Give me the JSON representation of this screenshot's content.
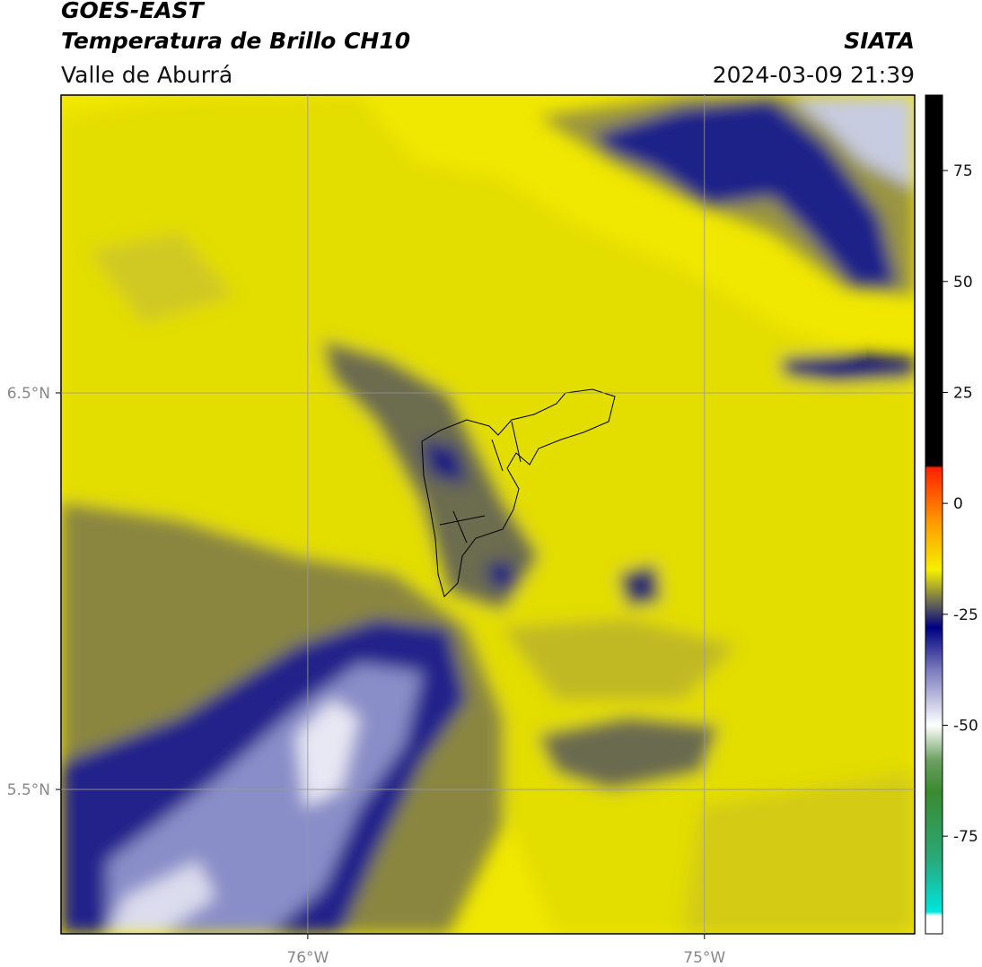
{
  "header": {
    "title": "GOES-EAST",
    "subtitle": "Temperatura de Brillo CH10",
    "region": "Valle de Aburrá",
    "source": "SIATA",
    "timestamp": "2024-03-09 21:39"
  },
  "map": {
    "xlim": [
      -76.622,
      -74.47
    ],
    "ylim": [
      5.136,
      7.251
    ],
    "xticks": [
      {
        "value": -76,
        "label": "76°W"
      },
      {
        "value": -75,
        "label": "75°W"
      }
    ],
    "yticks": [
      {
        "value": 6.5,
        "label": "6.5°N"
      },
      {
        "value": 5.5,
        "label": "5.5°N"
      }
    ],
    "grid": true
  },
  "colorbar": {
    "lim": [
      -97,
      92
    ],
    "ticks": [
      75,
      50,
      25,
      0,
      -25,
      -50,
      -75
    ],
    "stops": [
      {
        "value": -97,
        "color": "#ffffff"
      },
      {
        "value": -93,
        "color": "#ffffff"
      },
      {
        "value": -92,
        "color": "#00e5dc"
      },
      {
        "value": -80,
        "color": "#2aa878"
      },
      {
        "value": -65,
        "color": "#3a8a30"
      },
      {
        "value": -58,
        "color": "#6aa060"
      },
      {
        "value": -50,
        "color": "#ffffff"
      },
      {
        "value": -38,
        "color": "#8080c0"
      },
      {
        "value": -28,
        "color": "#000080"
      },
      {
        "value": -22,
        "color": "#707050"
      },
      {
        "value": -15,
        "color": "#f5f000"
      },
      {
        "value": -5,
        "color": "#ffa000"
      },
      {
        "value": 8,
        "color": "#ff2000"
      },
      {
        "value": 8.5,
        "color": "#000000"
      },
      {
        "value": 92,
        "color": "#000000"
      }
    ]
  }
}
